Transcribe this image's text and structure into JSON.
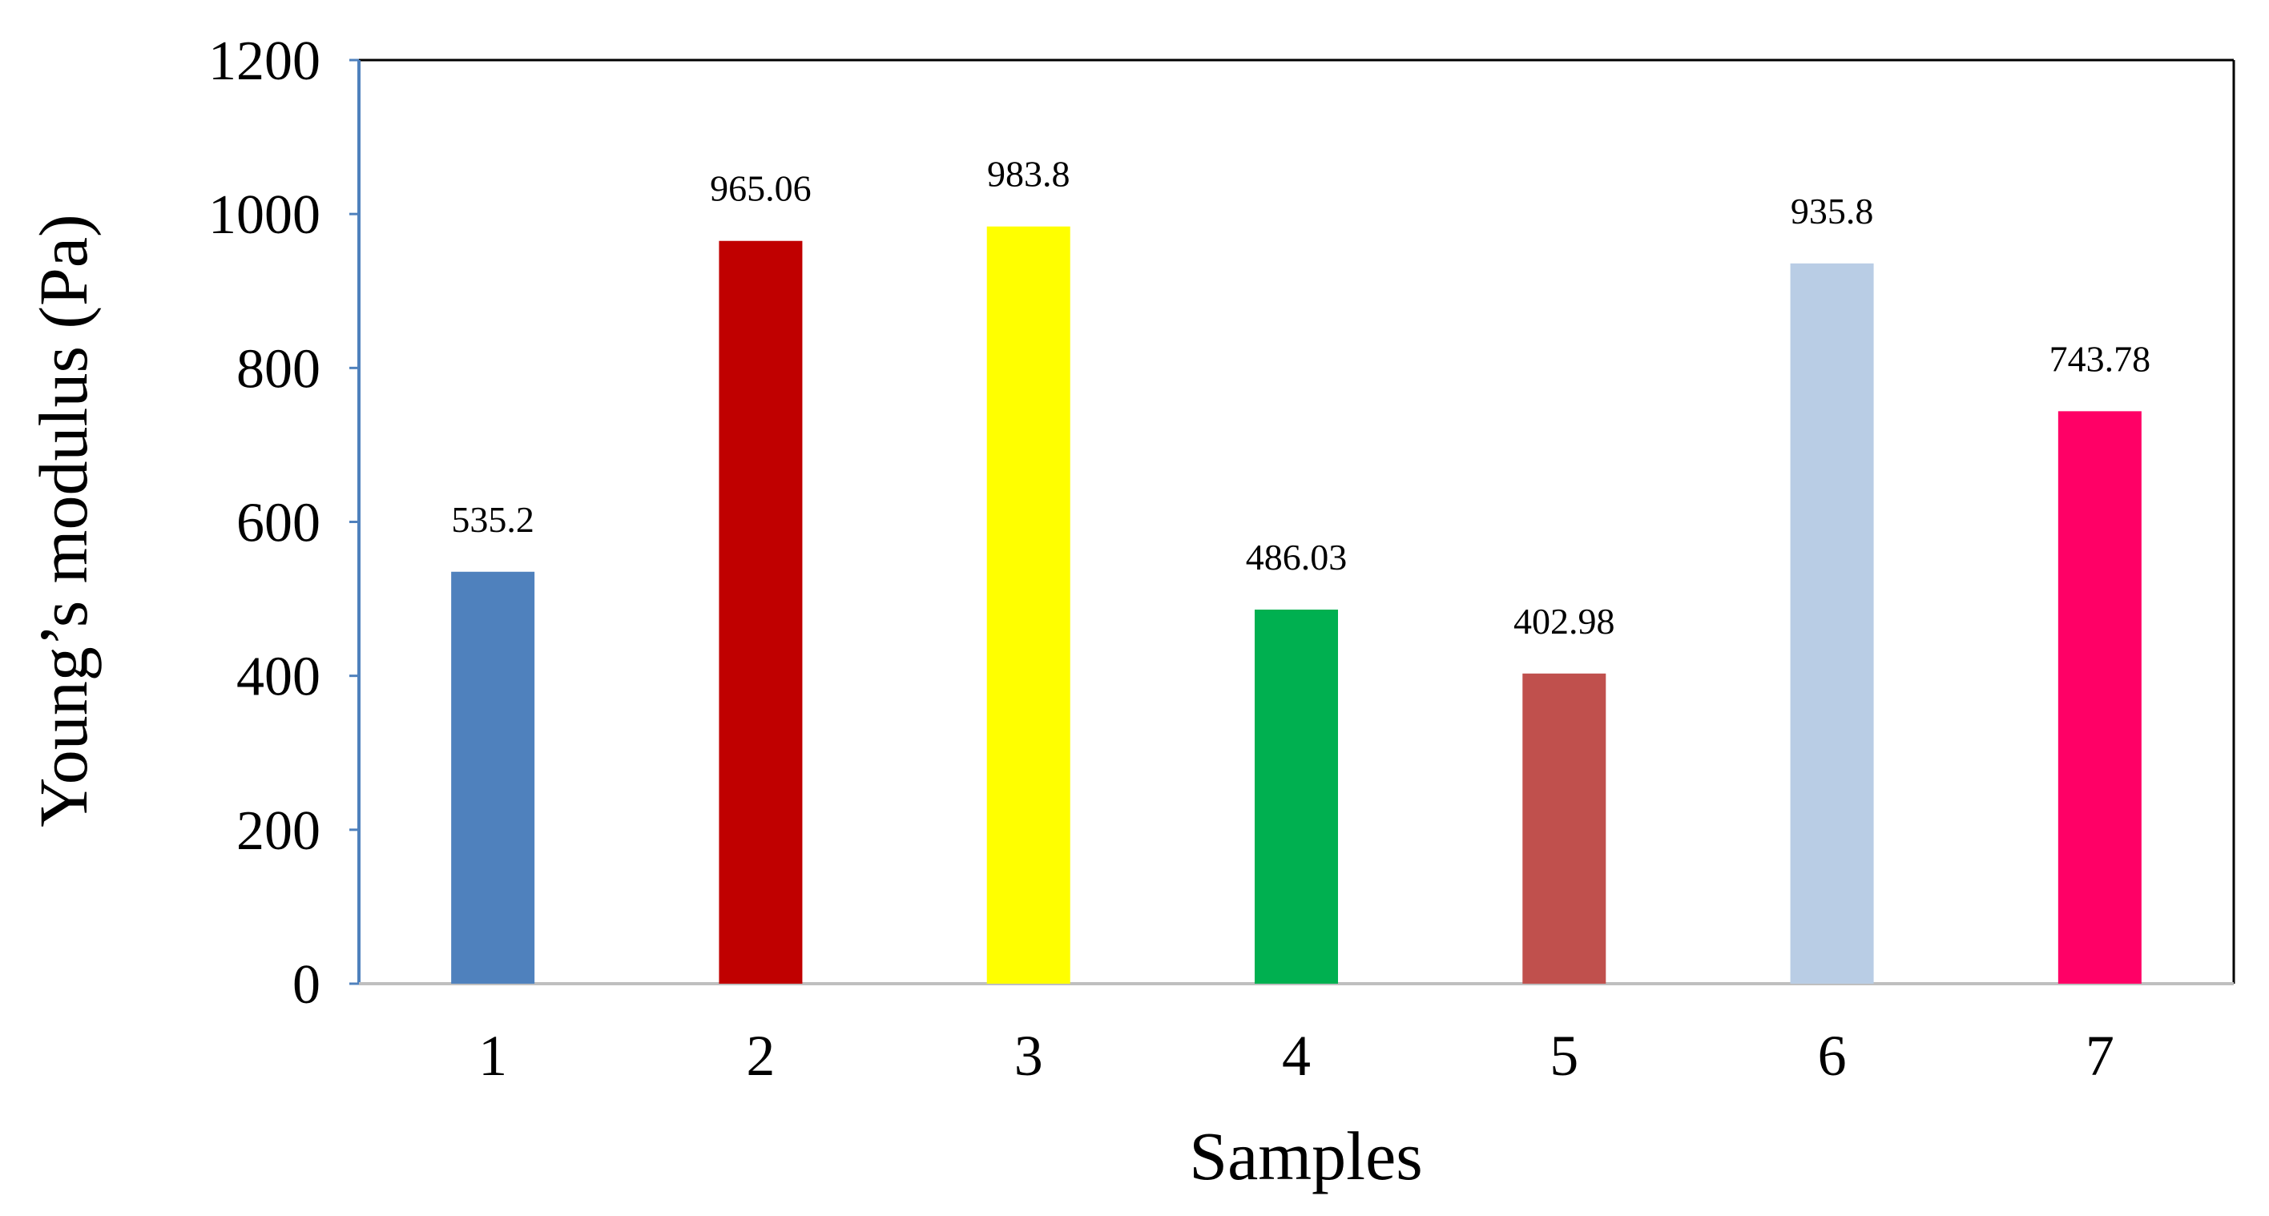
{
  "chart_data": {
    "type": "bar",
    "title": "",
    "xlabel": "Samples",
    "ylabel": "Young’s modulus (Pa)",
    "ylim": [
      0,
      1200
    ],
    "yticks": [
      0,
      200,
      400,
      600,
      800,
      1000,
      1200
    ],
    "categories": [
      "1",
      "2",
      "3",
      "4",
      "5",
      "6",
      "7"
    ],
    "values": [
      535.2,
      965.06,
      983.8,
      486.03,
      402.98,
      935.8,
      743.78
    ],
    "data_labels": [
      "535.2",
      "965.06",
      "983.8",
      "486.03",
      "402.98",
      "935.8",
      "743.78"
    ],
    "colors": [
      "#4F81BD",
      "#C00000",
      "#FFFF00",
      "#00B050",
      "#C0504D",
      "#B9CDE5",
      "#FF0066"
    ],
    "grid": false,
    "legend": "none"
  }
}
